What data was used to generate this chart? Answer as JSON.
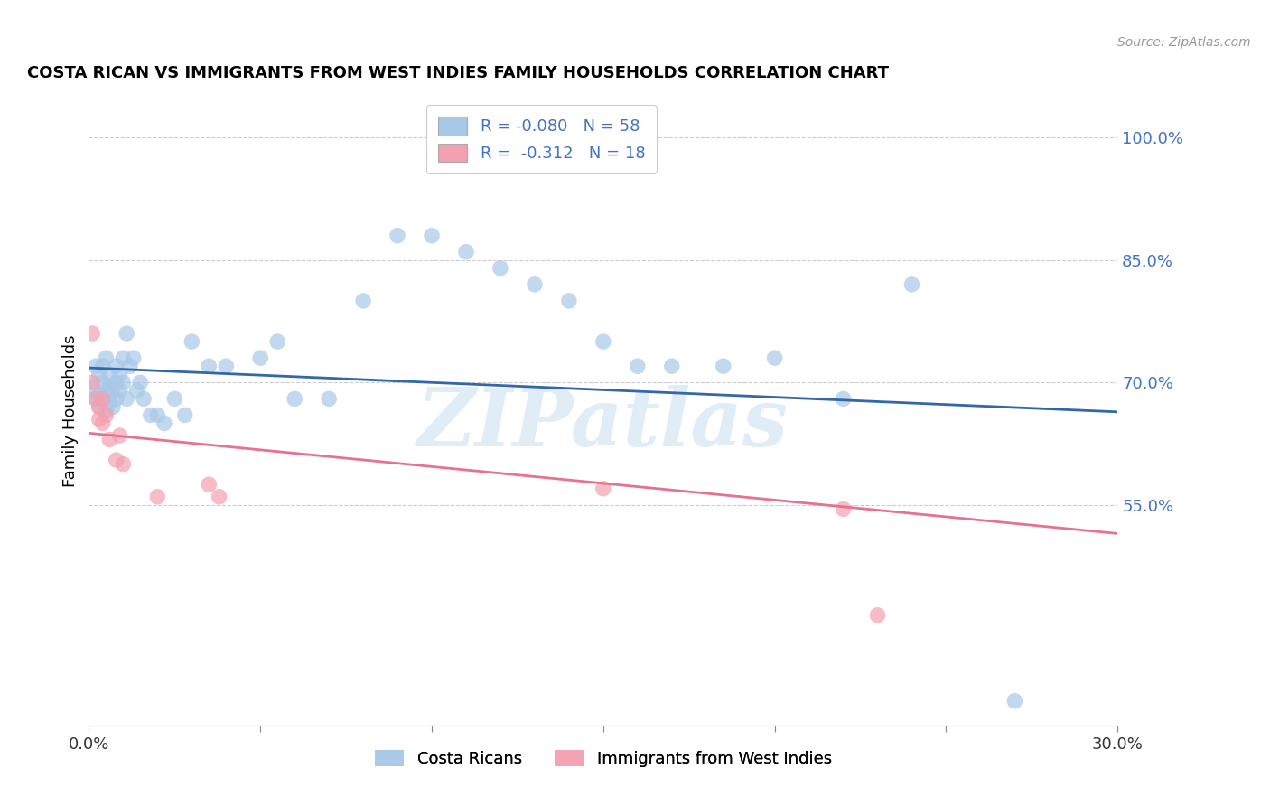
{
  "title": "COSTA RICAN VS IMMIGRANTS FROM WEST INDIES FAMILY HOUSEHOLDS CORRELATION CHART",
  "source": "Source: ZipAtlas.com",
  "ylabel": "Family Households",
  "y_ticks": [
    0.55,
    0.7,
    0.85,
    1.0
  ],
  "y_tick_labels": [
    "55.0%",
    "70.0%",
    "85.0%",
    "100.0%"
  ],
  "x_range": [
    0.0,
    0.3
  ],
  "y_range": [
    0.28,
    1.05
  ],
  "legend_label1": "R = -0.080   N = 58",
  "legend_label2": "R =  -0.312   N = 18",
  "legend_label1_short": "Costa Ricans",
  "legend_label2_short": "Immigrants from West Indies",
  "blue_color": "#a8c8e8",
  "blue_line_color": "#3366aa",
  "pink_color": "#f4a0b0",
  "pink_line_color": "#e87090",
  "watermark": "ZIPatlas",
  "blue_x": [
    0.001,
    0.002,
    0.002,
    0.003,
    0.003,
    0.003,
    0.004,
    0.004,
    0.004,
    0.005,
    0.005,
    0.005,
    0.006,
    0.006,
    0.006,
    0.007,
    0.007,
    0.008,
    0.008,
    0.008,
    0.009,
    0.009,
    0.01,
    0.01,
    0.011,
    0.011,
    0.012,
    0.013,
    0.014,
    0.015,
    0.016,
    0.018,
    0.02,
    0.022,
    0.025,
    0.028,
    0.03,
    0.035,
    0.04,
    0.05,
    0.055,
    0.06,
    0.07,
    0.08,
    0.09,
    0.1,
    0.11,
    0.12,
    0.13,
    0.14,
    0.15,
    0.16,
    0.17,
    0.185,
    0.2,
    0.22,
    0.24,
    0.27
  ],
  "blue_y": [
    0.695,
    0.72,
    0.68,
    0.71,
    0.685,
    0.67,
    0.72,
    0.7,
    0.68,
    0.73,
    0.69,
    0.665,
    0.71,
    0.695,
    0.675,
    0.69,
    0.67,
    0.72,
    0.7,
    0.68,
    0.71,
    0.69,
    0.73,
    0.7,
    0.68,
    0.76,
    0.72,
    0.73,
    0.69,
    0.7,
    0.68,
    0.66,
    0.66,
    0.65,
    0.68,
    0.66,
    0.75,
    0.72,
    0.72,
    0.73,
    0.75,
    0.68,
    0.68,
    0.8,
    0.88,
    0.88,
    0.86,
    0.84,
    0.82,
    0.8,
    0.75,
    0.72,
    0.72,
    0.72,
    0.73,
    0.68,
    0.82,
    0.31
  ],
  "pink_x": [
    0.001,
    0.001,
    0.002,
    0.003,
    0.003,
    0.004,
    0.004,
    0.005,
    0.006,
    0.008,
    0.009,
    0.01,
    0.02,
    0.035,
    0.038,
    0.15,
    0.22,
    0.23
  ],
  "pink_y": [
    0.76,
    0.7,
    0.68,
    0.67,
    0.655,
    0.68,
    0.65,
    0.66,
    0.63,
    0.605,
    0.635,
    0.6,
    0.56,
    0.575,
    0.56,
    0.57,
    0.545,
    0.415
  ],
  "blue_line_x0": 0.0,
  "blue_line_y0": 0.718,
  "blue_line_x1": 0.3,
  "blue_line_y1": 0.664,
  "pink_line_x0": 0.0,
  "pink_line_y0": 0.638,
  "pink_line_x1": 0.3,
  "pink_line_y1": 0.515
}
